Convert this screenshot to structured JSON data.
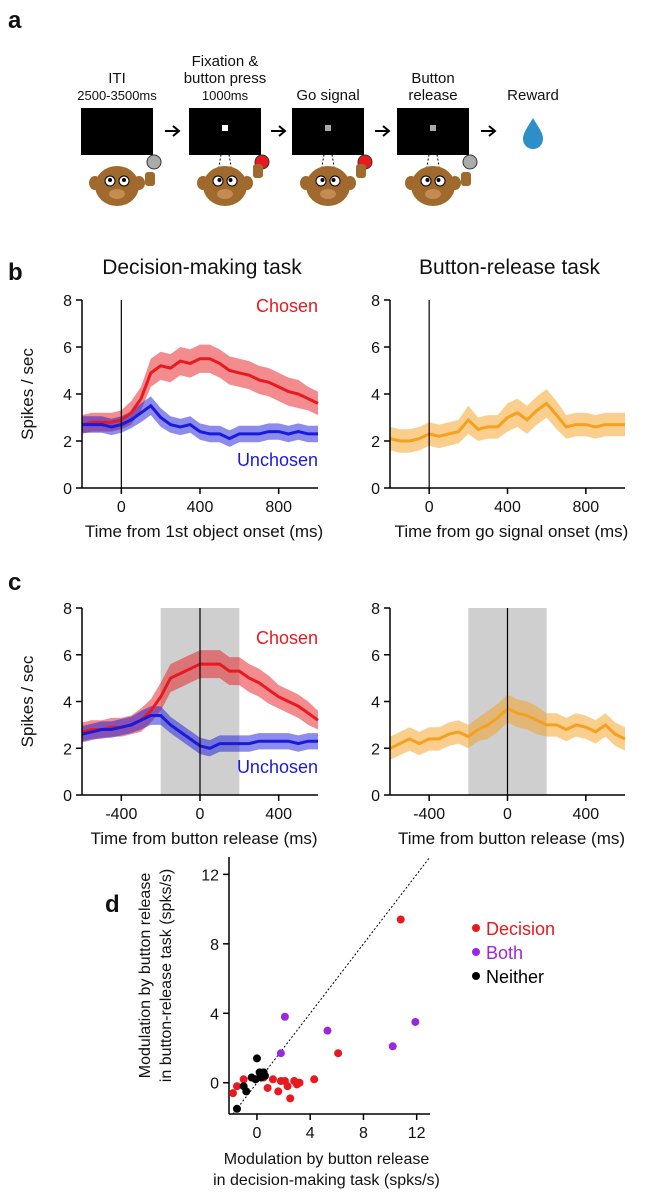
{
  "panel_labels": [
    "a",
    "b",
    "c",
    "d"
  ],
  "panel_a": {
    "steps": [
      {
        "label": [
          "ITI",
          "2500-3500ms"
        ]
      },
      {
        "label": [
          "Fixation &",
          "button press",
          "1000ms"
        ]
      },
      {
        "label": [
          "Go signal"
        ]
      },
      {
        "label": [
          "Button",
          "release"
        ]
      },
      {
        "label": [
          "Reward"
        ]
      }
    ]
  },
  "chart_data": [
    {
      "type": "line",
      "title": "Decision-making task",
      "ylabel": "Spikes / sec",
      "xlabel": "Time from 1st object onset (ms)",
      "x": [
        -200,
        -150,
        -100,
        -50,
        0,
        50,
        100,
        150,
        200,
        250,
        300,
        350,
        400,
        450,
        500,
        550,
        600,
        650,
        700,
        750,
        800,
        850,
        900,
        950,
        1000
      ],
      "xlim": [
        -200,
        1000
      ],
      "xticks": [
        0,
        400,
        800
      ],
      "ylim": [
        0,
        8
      ],
      "yticks": [
        0,
        2,
        4,
        6,
        8
      ],
      "event_line": 0,
      "series": [
        {
          "name": "Chosen",
          "color": "#e8191f",
          "values": [
            2.7,
            2.8,
            2.8,
            2.8,
            2.9,
            3.2,
            3.8,
            4.9,
            5.2,
            5.1,
            5.4,
            5.3,
            5.5,
            5.5,
            5.3,
            5.0,
            4.9,
            4.8,
            4.6,
            4.5,
            4.3,
            4.1,
            4.0,
            3.8,
            3.6
          ],
          "errors": [
            0.4,
            0.4,
            0.4,
            0.4,
            0.4,
            0.5,
            0.5,
            0.6,
            0.6,
            0.6,
            0.6,
            0.6,
            0.6,
            0.6,
            0.6,
            0.6,
            0.6,
            0.6,
            0.6,
            0.6,
            0.6,
            0.6,
            0.6,
            0.5,
            0.5
          ]
        },
        {
          "name": "Unchosen",
          "color": "#1a1adb",
          "values": [
            2.7,
            2.7,
            2.7,
            2.6,
            2.7,
            2.9,
            3.2,
            3.5,
            3.0,
            2.7,
            2.6,
            2.7,
            2.4,
            2.3,
            2.3,
            2.1,
            2.3,
            2.3,
            2.3,
            2.4,
            2.4,
            2.3,
            2.4,
            2.3,
            2.3
          ],
          "errors": [
            0.35,
            0.35,
            0.35,
            0.35,
            0.35,
            0.35,
            0.4,
            0.4,
            0.4,
            0.35,
            0.35,
            0.35,
            0.35,
            0.35,
            0.35,
            0.35,
            0.35,
            0.35,
            0.35,
            0.35,
            0.35,
            0.35,
            0.35,
            0.35,
            0.35
          ]
        }
      ]
    },
    {
      "type": "line",
      "title": "Button-release task",
      "xlabel": "Time from go signal onset (ms)",
      "x": [
        -200,
        -150,
        -100,
        -50,
        0,
        50,
        100,
        150,
        200,
        250,
        300,
        350,
        400,
        450,
        500,
        550,
        600,
        650,
        700,
        750,
        800,
        850,
        900,
        950,
        1000
      ],
      "xlim": [
        -200,
        1000
      ],
      "xticks": [
        0,
        400,
        800
      ],
      "ylim": [
        0,
        8
      ],
      "yticks": [
        0,
        2,
        4,
        6,
        8
      ],
      "event_line": 0,
      "series": [
        {
          "color": "#f5a01e",
          "values": [
            2.1,
            2.0,
            2.0,
            2.1,
            2.3,
            2.2,
            2.3,
            2.4,
            2.9,
            2.5,
            2.6,
            2.6,
            3.0,
            3.2,
            2.9,
            3.3,
            3.6,
            3.1,
            2.6,
            2.7,
            2.7,
            2.6,
            2.7,
            2.7,
            2.7
          ],
          "errors": [
            0.5,
            0.5,
            0.5,
            0.5,
            0.5,
            0.5,
            0.5,
            0.5,
            0.6,
            0.5,
            0.5,
            0.5,
            0.6,
            0.6,
            0.6,
            0.6,
            0.6,
            0.6,
            0.5,
            0.5,
            0.5,
            0.5,
            0.5,
            0.5,
            0.5
          ]
        }
      ]
    },
    {
      "type": "line",
      "ylabel": "Spikes / sec",
      "xlabel": "Time from button release (ms)",
      "x": [
        -600,
        -550,
        -500,
        -450,
        -400,
        -350,
        -300,
        -250,
        -200,
        -150,
        -100,
        -50,
        0,
        50,
        100,
        150,
        200,
        250,
        300,
        350,
        400,
        450,
        500,
        550,
        600
      ],
      "xlim": [
        -600,
        600
      ],
      "xticks": [
        -400,
        0,
        400
      ],
      "ylim": [
        0,
        8
      ],
      "yticks": [
        0,
        2,
        4,
        6,
        8
      ],
      "event_line": 0,
      "shaded_region": [
        -200,
        200
      ],
      "series": [
        {
          "name": "Chosen",
          "color": "#e8191f",
          "values": [
            2.7,
            2.8,
            2.8,
            2.9,
            2.9,
            3.0,
            3.2,
            3.6,
            4.2,
            5.0,
            5.2,
            5.4,
            5.6,
            5.6,
            5.6,
            5.3,
            5.3,
            5.0,
            4.8,
            4.5,
            4.2,
            4.0,
            3.8,
            3.5,
            3.2
          ],
          "errors": [
            0.4,
            0.4,
            0.4,
            0.4,
            0.4,
            0.4,
            0.5,
            0.5,
            0.6,
            0.6,
            0.6,
            0.6,
            0.6,
            0.6,
            0.6,
            0.6,
            0.6,
            0.6,
            0.6,
            0.6,
            0.5,
            0.5,
            0.5,
            0.5,
            0.4
          ]
        },
        {
          "name": "Unchosen",
          "color": "#1a1adb",
          "values": [
            2.6,
            2.7,
            2.8,
            2.8,
            2.9,
            3.0,
            3.2,
            3.4,
            3.4,
            3.0,
            2.7,
            2.4,
            2.1,
            2.0,
            2.2,
            2.2,
            2.2,
            2.2,
            2.3,
            2.3,
            2.3,
            2.3,
            2.2,
            2.3,
            2.3
          ],
          "errors": [
            0.35,
            0.35,
            0.35,
            0.35,
            0.35,
            0.35,
            0.4,
            0.4,
            0.4,
            0.35,
            0.35,
            0.35,
            0.35,
            0.35,
            0.35,
            0.35,
            0.35,
            0.35,
            0.35,
            0.35,
            0.35,
            0.35,
            0.35,
            0.35,
            0.35
          ]
        }
      ]
    },
    {
      "type": "line",
      "xlabel": "Time from button release (ms)",
      "x": [
        -600,
        -550,
        -500,
        -450,
        -400,
        -350,
        -300,
        -250,
        -200,
        -150,
        -100,
        -50,
        0,
        50,
        100,
        150,
        200,
        250,
        300,
        350,
        400,
        450,
        500,
        550,
        600
      ],
      "xlim": [
        -600,
        600
      ],
      "xticks": [
        -400,
        0,
        400
      ],
      "ylim": [
        0,
        8
      ],
      "yticks": [
        0,
        2,
        4,
        6,
        8
      ],
      "event_line": 0,
      "shaded_region": [
        -200,
        200
      ],
      "series": [
        {
          "color": "#f5a01e",
          "values": [
            2.0,
            2.2,
            2.4,
            2.2,
            2.4,
            2.4,
            2.6,
            2.7,
            2.5,
            2.8,
            3.0,
            3.3,
            3.7,
            3.5,
            3.4,
            3.2,
            3.0,
            3.0,
            2.8,
            3.0,
            2.9,
            2.7,
            3.0,
            2.6,
            2.4
          ],
          "errors": [
            0.5,
            0.5,
            0.5,
            0.5,
            0.5,
            0.5,
            0.5,
            0.5,
            0.5,
            0.5,
            0.6,
            0.6,
            0.6,
            0.6,
            0.6,
            0.6,
            0.5,
            0.5,
            0.5,
            0.5,
            0.5,
            0.5,
            0.5,
            0.5,
            0.5
          ]
        }
      ]
    },
    {
      "type": "scatter",
      "xlabel": [
        "Modulation by button release",
        "in decision-making task (spks/s)"
      ],
      "ylabel": [
        "Modulation by button release",
        "in button-release task (spks/s)"
      ],
      "xlim": [
        -2.1,
        13
      ],
      "xticks": [
        0,
        4,
        8,
        12
      ],
      "ylim": [
        -1.8,
        13
      ],
      "yticks": [
        0,
        4,
        8,
        12
      ],
      "identity_line": true,
      "series": [
        {
          "name": "Decision",
          "color": "#e8191f",
          "x": [
            -1.8,
            -1.5,
            -1.0,
            0.5,
            0.8,
            1.2,
            1.6,
            1.8,
            2.1,
            2.3,
            2.5,
            2.8,
            3.2,
            4.3,
            6.1,
            10.8,
            3.0
          ],
          "values": [
            -0.6,
            -0.2,
            0.2,
            0.3,
            -0.3,
            0.2,
            -0.5,
            0.1,
            0.1,
            -0.2,
            -0.9,
            0.1,
            0.0,
            0.2,
            1.7,
            9.4,
            -0.1
          ]
        },
        {
          "name": "Both",
          "color": "#9b27e0",
          "x": [
            2.1,
            5.3,
            10.2,
            11.9,
            1.8
          ],
          "values": [
            3.8,
            3.0,
            2.1,
            3.5,
            1.7
          ]
        },
        {
          "name": "Neither",
          "color": "#000000",
          "x": [
            -1.5,
            -1.0,
            -0.8,
            -0.4,
            0.0,
            0.2,
            0.3,
            0.5,
            0.6,
            -0.1
          ],
          "values": [
            -1.5,
            -0.2,
            -0.5,
            0.3,
            1.4,
            0.6,
            0.3,
            0.6,
            0.4,
            0.2
          ]
        }
      ]
    }
  ]
}
